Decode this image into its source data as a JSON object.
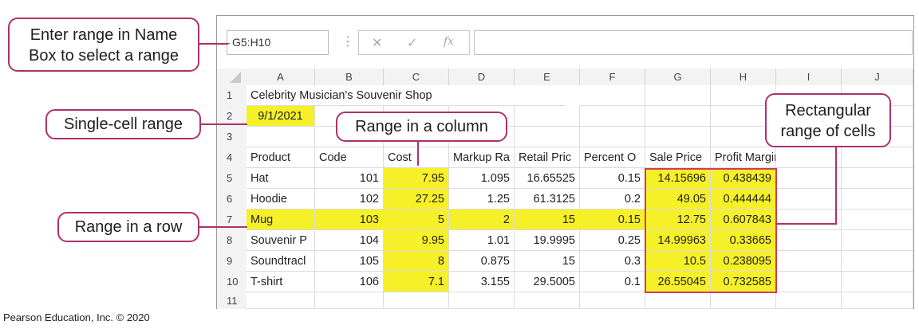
{
  "formula_bar": {
    "name_box": "G5:H10",
    "fx": "fx",
    "cancel": "✕",
    "confirm": "✓",
    "dots": "⋮"
  },
  "columns": [
    "A",
    "B",
    "C",
    "D",
    "E",
    "F",
    "G",
    "H",
    "I",
    "J"
  ],
  "rows": [
    "1",
    "2",
    "3",
    "4",
    "5",
    "6",
    "7",
    "8",
    "9",
    "10",
    "11"
  ],
  "cells": {
    "title": "Celebrity Musician's Souvenir Shop",
    "date": "9/1/2021",
    "headers": [
      "Product",
      "Code",
      "Cost",
      "Markup Ra",
      "Retail Pric",
      "Percent O",
      "Sale Price",
      "Profit Margin"
    ],
    "data": [
      [
        "Hat",
        "101",
        "7.95",
        "1.095",
        "16.65525",
        "0.15",
        "14.15696",
        "0.438439"
      ],
      [
        "Hoodie",
        "102",
        "27.25",
        "1.25",
        "61.3125",
        "0.2",
        "49.05",
        "0.444444"
      ],
      [
        "Mug",
        "103",
        "5",
        "2",
        "15",
        "0.15",
        "12.75",
        "0.607843"
      ],
      [
        "Souvenir P",
        "104",
        "9.95",
        "1.01",
        "19.9995",
        "0.25",
        "14.99963",
        "0.33665"
      ],
      [
        "Soundtracl",
        "105",
        "8",
        "0.875",
        "15",
        "0.3",
        "10.5",
        "0.238095"
      ],
      [
        "T-shirt",
        "106",
        "7.1",
        "3.155",
        "29.5005",
        "0.1",
        "26.55045",
        "0.732585"
      ]
    ]
  },
  "callouts": {
    "name_box": "Enter range in Name Box to select a range",
    "single_cell": "Single-cell range",
    "column": "Range in a column",
    "row": "Range in a row",
    "rect": "Rectangular range of cells"
  },
  "callout_lines": {
    "name_box": [
      "Enter range in Name",
      "Box to select a range"
    ],
    "rect": [
      "Rectangular",
      "range of cells"
    ]
  },
  "footer": "Pearson Education, Inc. © 2020",
  "colors": {
    "highlight": "#f6f028",
    "callout_border": "#b0306a",
    "range_border": "#d23a5c"
  }
}
